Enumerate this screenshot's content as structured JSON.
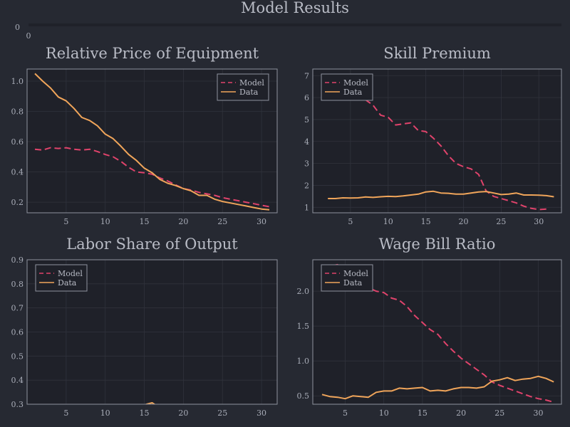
{
  "figure": {
    "title": "Model Results",
    "colors": {
      "background": "#262932",
      "plot_bg": "#1f2129",
      "axis": "#8f939e",
      "grid": "#30333c",
      "model": "#e0436b",
      "data": "#f0a55a"
    }
  },
  "header_strip": {
    "ytick": "0",
    "xtick": "0"
  },
  "chart_data": [
    {
      "type": "line",
      "title": "Relative Price of Equipment",
      "xlim": [
        0,
        32
      ],
      "ylim": [
        0.13,
        1.08
      ],
      "xticks": [
        5,
        10,
        15,
        20,
        25,
        30
      ],
      "yticks": [
        0.2,
        0.4,
        0.6,
        0.8,
        1.0
      ],
      "ytick_labels": [
        "0.2",
        "0.4",
        "0.6",
        "0.8",
        "1.0"
      ],
      "legend": "top-right",
      "series": [
        {
          "name": "Model",
          "style": "dashed",
          "x": [
            1,
            2,
            3,
            4,
            5,
            6,
            7,
            8,
            9,
            10,
            11,
            12,
            13,
            14,
            15,
            16,
            17,
            18,
            19,
            20,
            21,
            22,
            23,
            24,
            25,
            26,
            27,
            28,
            29,
            30,
            31
          ],
          "y": [
            0.55,
            0.545,
            0.56,
            0.555,
            0.56,
            0.55,
            0.545,
            0.55,
            0.535,
            0.515,
            0.5,
            0.47,
            0.43,
            0.4,
            0.395,
            0.385,
            0.36,
            0.34,
            0.315,
            0.29,
            0.28,
            0.265,
            0.255,
            0.245,
            0.23,
            0.22,
            0.21,
            0.2,
            0.19,
            0.18,
            0.17
          ]
        },
        {
          "name": "Data",
          "style": "solid",
          "x": [
            1,
            2,
            3,
            4,
            5,
            6,
            7,
            8,
            9,
            10,
            11,
            12,
            13,
            14,
            15,
            16,
            17,
            18,
            19,
            20,
            21,
            22,
            23,
            24,
            25,
            26,
            27,
            28,
            29,
            30,
            31
          ],
          "y": [
            1.05,
            1.0,
            0.955,
            0.895,
            0.87,
            0.82,
            0.76,
            0.74,
            0.705,
            0.65,
            0.62,
            0.57,
            0.515,
            0.475,
            0.425,
            0.395,
            0.35,
            0.325,
            0.31,
            0.29,
            0.275,
            0.245,
            0.245,
            0.22,
            0.205,
            0.195,
            0.185,
            0.175,
            0.165,
            0.155,
            0.15
          ]
        }
      ]
    },
    {
      "type": "line",
      "title": "Skill Premium",
      "xlim": [
        0,
        33
      ],
      "ylim": [
        0.75,
        7.3
      ],
      "xticks": [
        5,
        10,
        15,
        20,
        25,
        30
      ],
      "yticks": [
        1,
        2,
        3,
        4,
        5,
        6,
        7
      ],
      "ytick_labels": [
        "1",
        "2",
        "3",
        "4",
        "5",
        "6",
        "7"
      ],
      "legend": "top-left",
      "series": [
        {
          "name": "Model",
          "style": "dashed",
          "x": [
            2,
            3,
            4,
            5,
            6,
            7,
            8,
            9,
            10,
            11,
            12,
            13,
            14,
            15,
            16,
            17,
            18,
            19,
            20,
            21,
            22,
            23,
            24,
            25,
            26,
            27,
            28,
            29,
            30,
            31
          ],
          "y": [
            6.1,
            6.2,
            6.3,
            6.15,
            5.95,
            5.9,
            5.65,
            5.2,
            5.1,
            4.75,
            4.8,
            4.85,
            4.5,
            4.45,
            4.15,
            3.8,
            3.35,
            3.0,
            2.85,
            2.75,
            2.5,
            1.75,
            1.5,
            1.4,
            1.3,
            1.2,
            1.05,
            0.95,
            0.9,
            0.92
          ]
        },
        {
          "name": "Data",
          "style": "solid",
          "x": [
            2,
            3,
            4,
            5,
            6,
            7,
            8,
            9,
            10,
            11,
            12,
            13,
            14,
            15,
            16,
            17,
            18,
            19,
            20,
            21,
            22,
            23,
            24,
            25,
            26,
            27,
            28,
            29,
            30,
            31,
            32
          ],
          "y": [
            1.4,
            1.4,
            1.43,
            1.42,
            1.43,
            1.47,
            1.45,
            1.48,
            1.5,
            1.49,
            1.52,
            1.56,
            1.6,
            1.7,
            1.73,
            1.65,
            1.64,
            1.6,
            1.6,
            1.65,
            1.7,
            1.72,
            1.65,
            1.58,
            1.6,
            1.65,
            1.56,
            1.56,
            1.55,
            1.53,
            1.48
          ]
        }
      ]
    },
    {
      "type": "line",
      "title": "Labor Share of Output",
      "xlim": [
        0,
        32
      ],
      "ylim": [
        0.3,
        0.9
      ],
      "xticks": [
        5,
        10,
        15,
        20,
        25,
        30
      ],
      "yticks": [
        0.3,
        0.4,
        0.5,
        0.6,
        0.7,
        0.8,
        0.9
      ],
      "ytick_labels": [
        "0.3",
        "0.4",
        "0.5",
        "0.6",
        "0.7",
        "0.8",
        "0.9"
      ],
      "legend": "top-left",
      "series": [
        {
          "name": "Model",
          "style": "dashed",
          "x": [],
          "y": []
        },
        {
          "name": "Data",
          "style": "solid",
          "x": [
            15,
            15.5,
            16,
            16.4
          ],
          "y": [
            0.297,
            0.302,
            0.306,
            0.298
          ]
        }
      ]
    },
    {
      "type": "line",
      "title": "Wage Bill Ratio",
      "xlim": [
        0.8,
        33
      ],
      "ylim": [
        0.38,
        2.45
      ],
      "xticks": [
        5,
        10,
        15,
        20,
        25,
        30
      ],
      "yticks": [
        0.5,
        1.0,
        1.5,
        2.0
      ],
      "ytick_labels": [
        "0.5",
        "1.0",
        "1.5",
        "2.0"
      ],
      "legend": "top-left",
      "series": [
        {
          "name": "Model",
          "style": "dashed",
          "x": [
            2,
            3,
            4,
            5,
            6,
            7,
            8,
            9,
            10,
            11,
            12,
            13,
            14,
            15,
            16,
            17,
            18,
            19,
            20,
            21,
            22,
            23,
            24,
            25,
            26,
            27,
            28,
            29,
            30,
            31,
            32
          ],
          "y": [
            2.33,
            2.36,
            2.38,
            2.32,
            2.18,
            2.12,
            2.05,
            2.0,
            1.98,
            1.9,
            1.87,
            1.78,
            1.65,
            1.55,
            1.45,
            1.38,
            1.25,
            1.14,
            1.04,
            0.96,
            0.88,
            0.8,
            0.7,
            0.65,
            0.61,
            0.57,
            0.53,
            0.49,
            0.46,
            0.44,
            0.41
          ]
        },
        {
          "name": "Data",
          "style": "solid",
          "x": [
            2,
            3,
            4,
            5,
            6,
            7,
            8,
            9,
            10,
            11,
            12,
            13,
            14,
            15,
            16,
            17,
            18,
            19,
            20,
            21,
            22,
            23,
            24,
            25,
            26,
            27,
            28,
            29,
            30,
            31,
            32
          ],
          "y": [
            0.52,
            0.49,
            0.48,
            0.46,
            0.5,
            0.49,
            0.48,
            0.55,
            0.57,
            0.57,
            0.61,
            0.6,
            0.61,
            0.62,
            0.57,
            0.58,
            0.57,
            0.6,
            0.62,
            0.62,
            0.61,
            0.63,
            0.71,
            0.73,
            0.76,
            0.72,
            0.74,
            0.75,
            0.78,
            0.75,
            0.7
          ]
        }
      ]
    }
  ]
}
